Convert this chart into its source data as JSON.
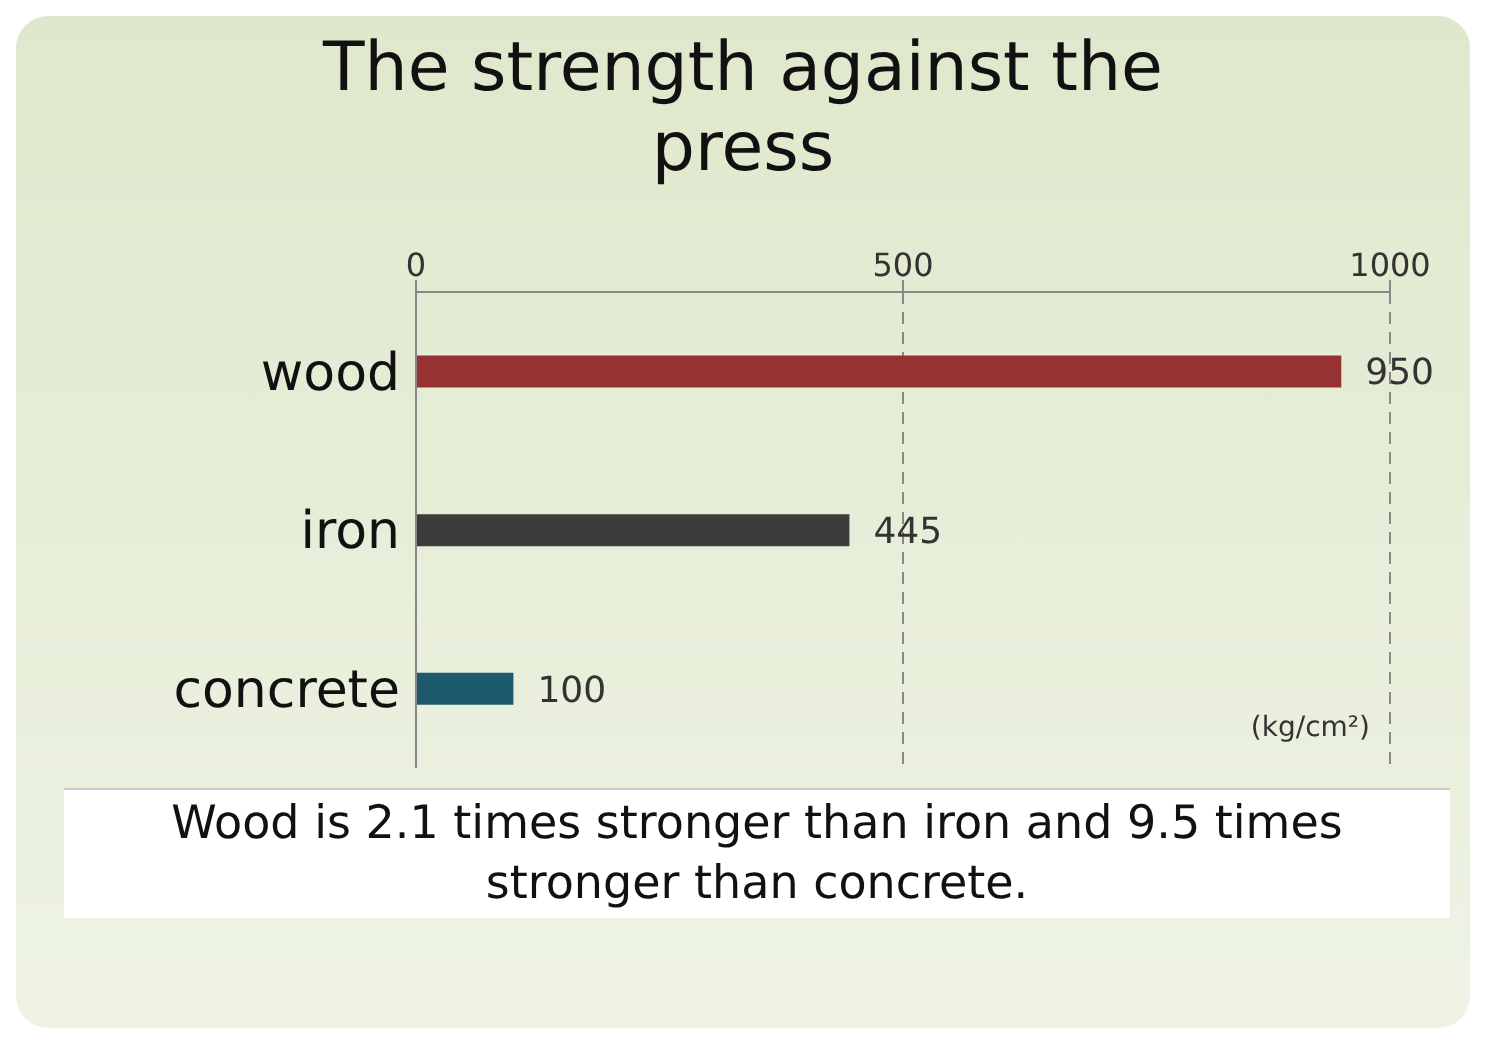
{
  "chart_data": {
    "type": "bar",
    "orientation": "horizontal",
    "title": "The strength against the press",
    "categories": [
      "wood",
      "iron",
      "concrete"
    ],
    "values": [
      950,
      445,
      100
    ],
    "colors": [
      "#963232",
      "#3c3c3c",
      "#1e5a6e"
    ],
    "xlim": [
      0,
      1000
    ],
    "xticks": [
      0,
      500,
      1000
    ],
    "grid": "x",
    "data_labels": true,
    "annotations": [
      "(kg/cm²)",
      "Wood is 2.1 times stronger than iron and 9.5 times stronger than concrete."
    ]
  }
}
